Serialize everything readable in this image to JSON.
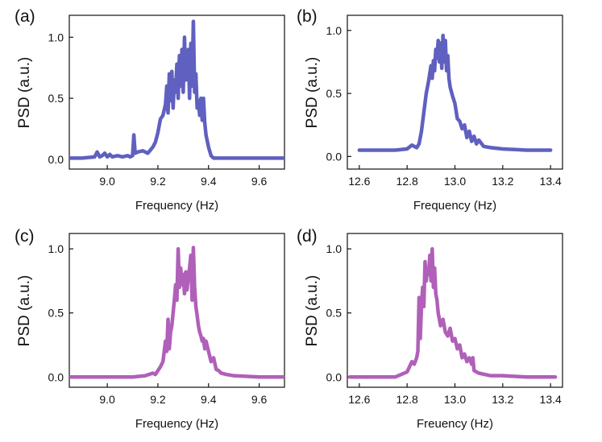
{
  "chart_data": [
    {
      "type": "line",
      "panel_label": "(a)",
      "xlabel": "Frequency (Hz)",
      "ylabel": "PSD (a.u.)",
      "xlim": [
        8.85,
        9.7
      ],
      "ylim": [
        -0.08,
        1.18
      ],
      "xticks": [
        "9.0",
        "9.2",
        "9.4",
        "9.6"
      ],
      "yticks": [
        "0.0",
        "0.5",
        "1.0"
      ],
      "color": "#6060c0",
      "series": [
        {
          "x": [
            8.85,
            8.9,
            8.95,
            8.96,
            8.97,
            8.98,
            8.99,
            9.0,
            9.01,
            9.02,
            9.04,
            9.06,
            9.08,
            9.09,
            9.1,
            9.105,
            9.11,
            9.12,
            9.14,
            9.16,
            9.18,
            9.19,
            9.2,
            9.21,
            9.22,
            9.23,
            9.235,
            9.24,
            9.245,
            9.25,
            9.255,
            9.26,
            9.265,
            9.27,
            9.275,
            9.28,
            9.285,
            9.29,
            9.295,
            9.3,
            9.305,
            9.31,
            9.315,
            9.32,
            9.325,
            9.33,
            9.335,
            9.34,
            9.345,
            9.35,
            9.355,
            9.36,
            9.365,
            9.37,
            9.375,
            9.38,
            9.385,
            9.39,
            9.4,
            9.41,
            9.42,
            9.45,
            9.5,
            9.6,
            9.7
          ],
          "y": [
            0.01,
            0.01,
            0.02,
            0.06,
            0.02,
            0.03,
            0.05,
            0.02,
            0.04,
            0.02,
            0.03,
            0.02,
            0.03,
            0.02,
            0.03,
            0.2,
            0.05,
            0.06,
            0.07,
            0.05,
            0.1,
            0.14,
            0.22,
            0.33,
            0.36,
            0.45,
            0.6,
            0.38,
            0.7,
            0.48,
            0.72,
            0.42,
            0.65,
            0.55,
            0.78,
            0.5,
            0.85,
            0.6,
            0.9,
            0.55,
            1.0,
            0.65,
            0.78,
            0.9,
            0.5,
            0.95,
            0.6,
            1.13,
            0.55,
            0.7,
            0.42,
            0.48,
            0.36,
            0.5,
            0.32,
            0.5,
            0.3,
            0.2,
            0.1,
            0.03,
            0.01,
            0.01,
            0.01,
            0.01,
            0.01
          ]
        }
      ]
    },
    {
      "type": "line",
      "panel_label": "(b)",
      "xlabel": "Frequency (Hz)",
      "ylabel": "PSD (a.u.)",
      "xlim": [
        12.55,
        13.45
      ],
      "ylim": [
        -0.1,
        1.12
      ],
      "xticks": [
        "12.6",
        "12.8",
        "13.0",
        "13.2",
        "13.4"
      ],
      "yticks": [
        "0.0",
        "0.5",
        "1.0"
      ],
      "color": "#6060c0",
      "series": [
        {
          "x": [
            12.6,
            12.65,
            12.7,
            12.75,
            12.8,
            12.82,
            12.84,
            12.85,
            12.86,
            12.87,
            12.88,
            12.89,
            12.9,
            12.905,
            12.91,
            12.915,
            12.92,
            12.925,
            12.93,
            12.935,
            12.94,
            12.945,
            12.95,
            12.955,
            12.96,
            12.965,
            12.97,
            12.975,
            12.98,
            12.99,
            13.0,
            13.01,
            13.02,
            13.03,
            13.04,
            13.05,
            13.06,
            13.07,
            13.08,
            13.09,
            13.1,
            13.12,
            13.15,
            13.2,
            13.3,
            13.4
          ],
          "y": [
            0.05,
            0.05,
            0.05,
            0.05,
            0.06,
            0.09,
            0.07,
            0.1,
            0.2,
            0.35,
            0.5,
            0.6,
            0.72,
            0.62,
            0.76,
            0.68,
            0.85,
            0.78,
            0.92,
            0.75,
            0.9,
            0.7,
            0.96,
            0.75,
            0.92,
            0.68,
            0.8,
            0.62,
            0.55,
            0.48,
            0.42,
            0.3,
            0.28,
            0.22,
            0.25,
            0.15,
            0.2,
            0.12,
            0.16,
            0.1,
            0.13,
            0.08,
            0.07,
            0.06,
            0.05,
            0.05
          ]
        }
      ]
    },
    {
      "type": "line",
      "panel_label": "(c)",
      "xlabel": "Frequency (Hz)",
      "ylabel": "PSD (a.u.)",
      "xlim": [
        8.85,
        9.7
      ],
      "ylim": [
        -0.08,
        1.12
      ],
      "xticks": [
        "9.0",
        "9.2",
        "9.4",
        "9.6"
      ],
      "yticks": [
        "0.0",
        "0.5",
        "1.0"
      ],
      "color": "#b060b8",
      "series": [
        {
          "x": [
            8.85,
            9.0,
            9.1,
            9.15,
            9.18,
            9.19,
            9.2,
            9.21,
            9.22,
            9.23,
            9.235,
            9.24,
            9.245,
            9.25,
            9.255,
            9.26,
            9.265,
            9.27,
            9.275,
            9.28,
            9.285,
            9.29,
            9.295,
            9.3,
            9.305,
            9.31,
            9.315,
            9.32,
            9.325,
            9.33,
            9.335,
            9.34,
            9.345,
            9.35,
            9.355,
            9.36,
            9.365,
            9.37,
            9.375,
            9.38,
            9.385,
            9.39,
            9.4,
            9.41,
            9.42,
            9.43,
            9.44,
            9.45,
            9.47,
            9.5,
            9.6,
            9.7
          ],
          "y": [
            0.0,
            0.0,
            0.0,
            0.01,
            0.03,
            0.02,
            0.05,
            0.08,
            0.12,
            0.28,
            0.2,
            0.45,
            0.22,
            0.35,
            0.4,
            0.5,
            0.6,
            0.72,
            0.6,
            1.0,
            0.7,
            0.85,
            0.72,
            0.8,
            0.65,
            0.82,
            0.68,
            0.78,
            0.85,
            0.95,
            0.6,
            1.01,
            0.7,
            0.55,
            0.48,
            0.4,
            0.35,
            0.32,
            0.28,
            0.3,
            0.22,
            0.28,
            0.2,
            0.12,
            0.15,
            0.06,
            0.05,
            0.03,
            0.02,
            0.01,
            0.0,
            0.0
          ]
        }
      ]
    },
    {
      "type": "line",
      "panel_label": "(d)",
      "xlabel": "Freuency (Hz)",
      "ylabel": "PSD (a.u.)",
      "xlim": [
        12.55,
        13.45
      ],
      "ylim": [
        -0.08,
        1.12
      ],
      "xticks": [
        "12.6",
        "12.8",
        "13.0",
        "13.2",
        "13.4"
      ],
      "yticks": [
        "0.0",
        "0.5",
        "1.0"
      ],
      "color": "#b060b8",
      "series": [
        {
          "x": [
            12.56,
            12.65,
            12.7,
            12.75,
            12.8,
            12.81,
            12.82,
            12.83,
            12.84,
            12.845,
            12.85,
            12.855,
            12.86,
            12.865,
            12.87,
            12.875,
            12.88,
            12.885,
            12.89,
            12.895,
            12.9,
            12.905,
            12.91,
            12.915,
            12.92,
            12.925,
            12.93,
            12.94,
            12.95,
            12.96,
            12.97,
            12.98,
            12.99,
            13.0,
            13.01,
            13.02,
            13.03,
            13.04,
            13.05,
            13.06,
            13.07,
            13.075,
            13.08,
            13.1,
            13.15,
            13.2,
            13.3,
            13.42
          ],
          "y": [
            0.0,
            0.0,
            0.0,
            0.0,
            0.04,
            0.08,
            0.12,
            0.1,
            0.15,
            0.2,
            0.62,
            0.3,
            0.55,
            0.7,
            0.55,
            0.9,
            0.75,
            0.85,
            0.8,
            0.95,
            0.75,
            1.0,
            0.7,
            0.85,
            0.65,
            0.6,
            0.5,
            0.4,
            0.45,
            0.35,
            0.32,
            0.38,
            0.28,
            0.3,
            0.22,
            0.25,
            0.15,
            0.18,
            0.12,
            0.15,
            0.1,
            0.15,
            0.05,
            0.03,
            0.01,
            0.01,
            0.0,
            0.0
          ]
        }
      ]
    }
  ]
}
